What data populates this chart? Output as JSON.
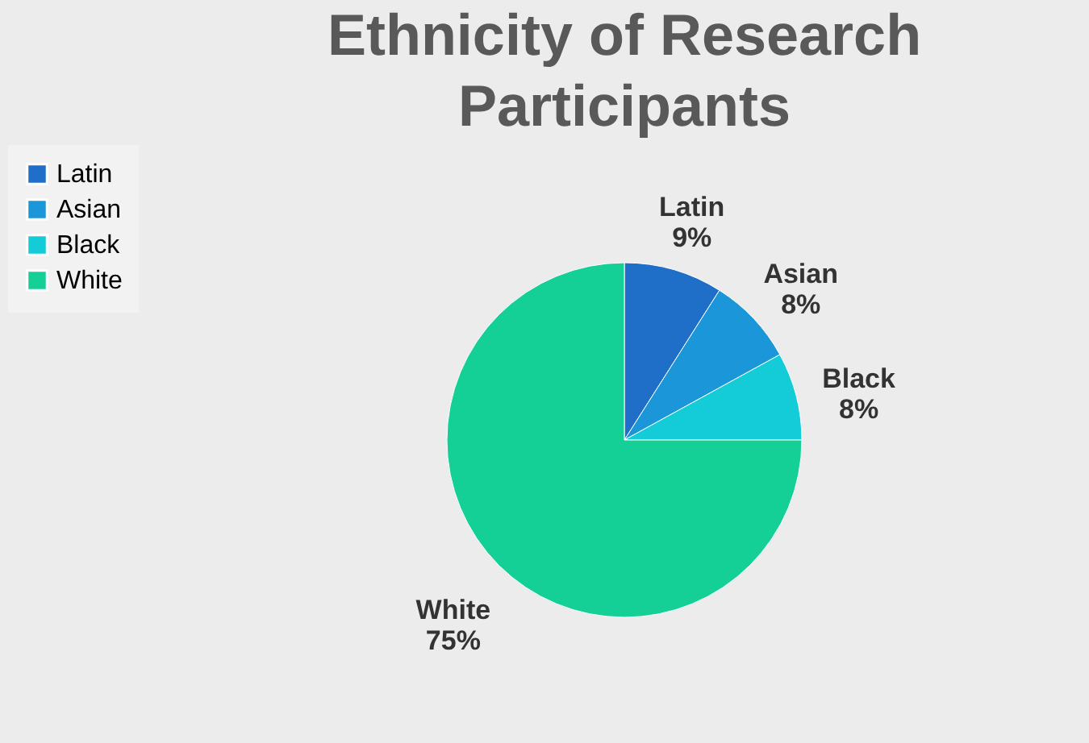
{
  "chart_data": {
    "type": "pie",
    "title": "Ethnicity of Research Participants",
    "categories": [
      "Latin",
      "Asian",
      "Black",
      "White"
    ],
    "values": [
      9,
      8,
      8,
      75
    ],
    "colors": [
      "#1f6fc8",
      "#1b96d8",
      "#14cbd8",
      "#14cf96"
    ],
    "value_labels": [
      "9%",
      "8%",
      "8%",
      "75%"
    ],
    "legend": "left"
  }
}
